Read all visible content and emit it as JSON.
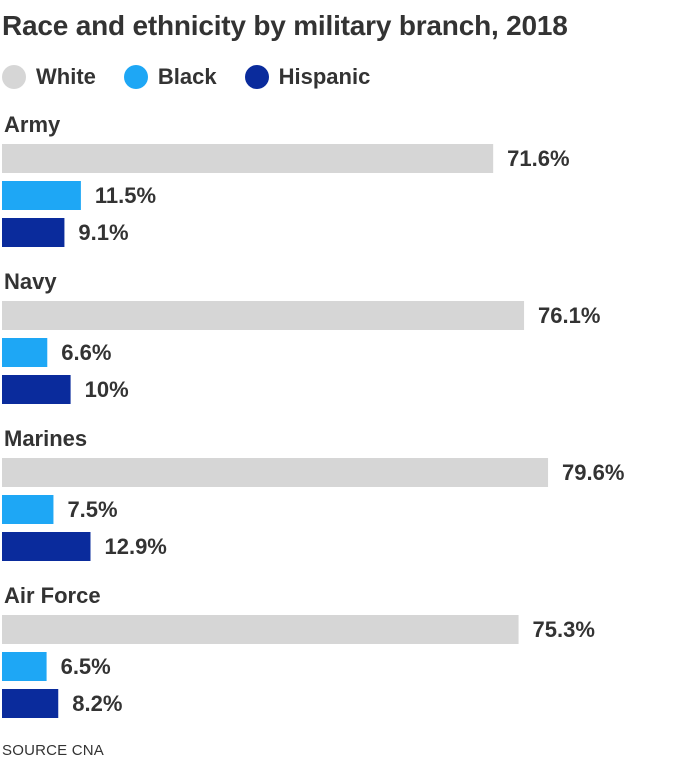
{
  "title": "Race and ethnicity by military branch, 2018",
  "source": "SOURCE CNA",
  "colors": {
    "white": "#d6d6d6",
    "black": "#1ea7f5",
    "hispanic": "#0a2b9c",
    "text": "#333333"
  },
  "chart_data": {
    "type": "bar",
    "orientation": "horizontal",
    "title": "Race and ethnicity by military branch, 2018",
    "legend": [
      "White",
      "Black",
      "Hispanic"
    ],
    "legend_placement": "top",
    "grid": false,
    "value_suffix": "%",
    "categories": [
      "Army",
      "Navy",
      "Marines",
      "Air Force"
    ],
    "series": [
      {
        "name": "White",
        "color": "#d6d6d6",
        "values": [
          71.6,
          76.1,
          79.6,
          75.3
        ],
        "labels": [
          "71.6%",
          "76.1%",
          "79.6%",
          "75.3%"
        ]
      },
      {
        "name": "Black",
        "color": "#1ea7f5",
        "values": [
          11.5,
          6.6,
          7.5,
          6.5
        ],
        "labels": [
          "11.5%",
          "6.6%",
          "7.5%",
          "6.5%"
        ]
      },
      {
        "name": "Hispanic",
        "color": "#0a2b9c",
        "values": [
          9.1,
          10,
          12.9,
          8.2
        ],
        "labels": [
          "9.1%",
          "10%",
          "12.9%",
          "8.2%"
        ]
      }
    ]
  }
}
